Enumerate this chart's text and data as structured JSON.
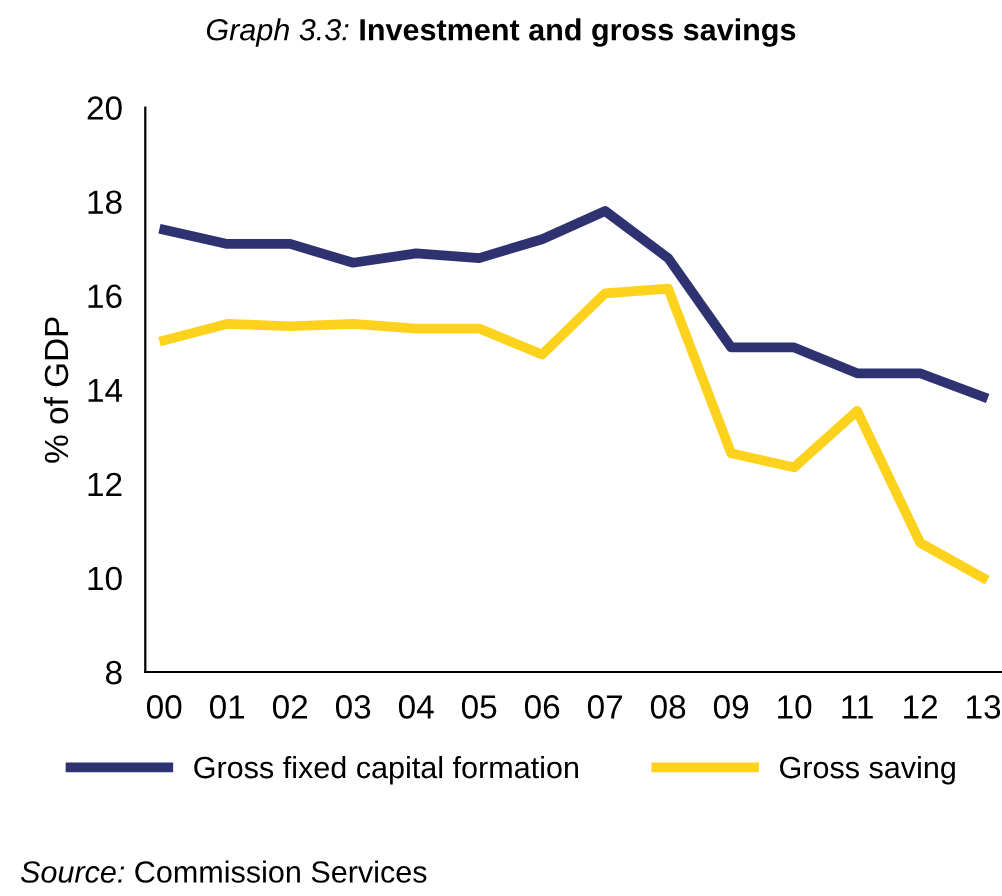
{
  "chart_data": {
    "type": "line",
    "title": "Graph 3.3: Investment and gross savings",
    "ylabel": "% of GDP",
    "categories": [
      "00",
      "01",
      "02",
      "03",
      "04",
      "05",
      "06",
      "07",
      "08",
      "09",
      "10",
      "11",
      "12",
      "13"
    ],
    "series": [
      {
        "name": "Gross fixed capital formation",
        "color": "#2e3271",
        "values": [
          17.4,
          17.1,
          17.1,
          16.7,
          16.9,
          16.8,
          17.2,
          17.8,
          16.8,
          14.9,
          14.9,
          14.35,
          14.35,
          13.85
        ]
      },
      {
        "name": "Gross saving",
        "color": "#fcd21c",
        "values": [
          15.05,
          15.4,
          15.35,
          15.4,
          15.3,
          15.3,
          14.75,
          16.05,
          16.15,
          12.65,
          12.35,
          13.55,
          10.75,
          10.0
        ]
      }
    ],
    "ylim": [
      8,
      20
    ],
    "yticks": [
      8,
      10,
      12,
      14,
      16,
      18,
      20
    ],
    "grid": false,
    "legend": "bottom",
    "marker": "none",
    "line_style": "solid",
    "annotations": [
      "Source: Commission Services"
    ]
  }
}
